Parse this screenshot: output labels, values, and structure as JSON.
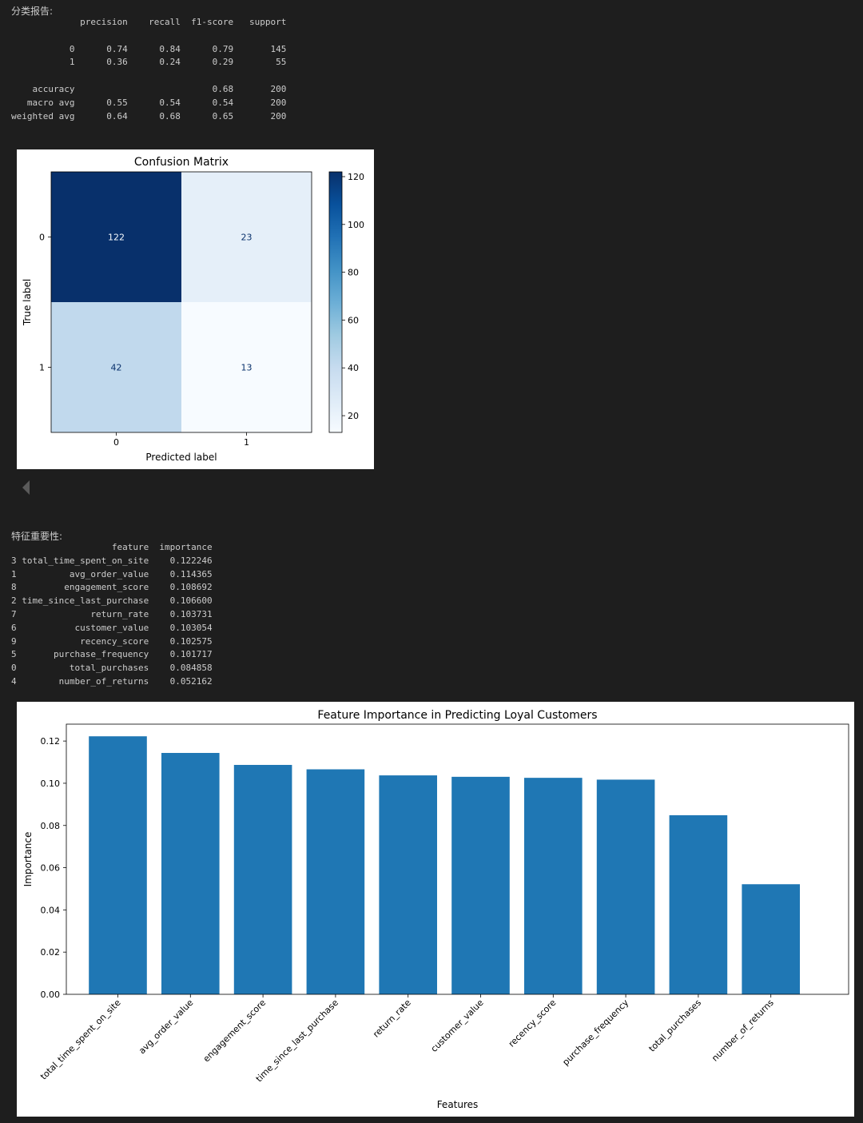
{
  "report": {
    "heading": "分类报告:",
    "header": {
      "precision": "precision",
      "recall": "recall",
      "f1": "f1-score",
      "support": "support"
    },
    "rows": [
      {
        "label": "0",
        "precision": "0.74",
        "recall": "0.84",
        "f1": "0.79",
        "support": "145"
      },
      {
        "label": "1",
        "precision": "0.36",
        "recall": "0.24",
        "f1": "0.29",
        "support": "55"
      },
      {
        "label": "",
        "precision": "",
        "recall": "",
        "f1": "",
        "support": ""
      },
      {
        "label": "accuracy",
        "precision": "",
        "recall": "",
        "f1": "0.68",
        "support": "200"
      },
      {
        "label": "macro avg",
        "precision": "0.55",
        "recall": "0.54",
        "f1": "0.54",
        "support": "200"
      },
      {
        "label": "weighted avg",
        "precision": "0.64",
        "recall": "0.68",
        "f1": "0.65",
        "support": "200"
      }
    ]
  },
  "confusion": {
    "title": "Confusion Matrix",
    "xlabel": "Predicted label",
    "ylabel": "True label",
    "labels": [
      "0",
      "1"
    ],
    "matrix": [
      [
        122,
        23
      ],
      [
        42,
        13
      ]
    ],
    "colorbar_ticks": [
      "20",
      "40",
      "60",
      "80",
      "100",
      "120"
    ],
    "colorbar_tick_values": [
      20,
      40,
      60,
      80,
      100,
      120
    ],
    "colormap": [
      "#f7fbff",
      "#deebf7",
      "#c6dbef",
      "#9ecae1",
      "#6baed6",
      "#4292c6",
      "#2171b5",
      "#08519c",
      "#08306b"
    ]
  },
  "importance_table": {
    "heading": "特征重要性:",
    "header": {
      "feature": "feature",
      "importance": "importance"
    },
    "rows": [
      {
        "idx": "3",
        "feature": "total_time_spent_on_site",
        "importance": "0.122246"
      },
      {
        "idx": "1",
        "feature": "avg_order_value",
        "importance": "0.114365"
      },
      {
        "idx": "8",
        "feature": "engagement_score",
        "importance": "0.108692"
      },
      {
        "idx": "2",
        "feature": "time_since_last_purchase",
        "importance": "0.106600"
      },
      {
        "idx": "7",
        "feature": "return_rate",
        "importance": "0.103731"
      },
      {
        "idx": "6",
        "feature": "customer_value",
        "importance": "0.103054"
      },
      {
        "idx": "9",
        "feature": "recency_score",
        "importance": "0.102575"
      },
      {
        "idx": "5",
        "feature": "purchase_frequency",
        "importance": "0.101717"
      },
      {
        "idx": "0",
        "feature": "total_purchases",
        "importance": "0.084858"
      },
      {
        "idx": "4",
        "feature": "number_of_returns",
        "importance": "0.052162"
      }
    ]
  },
  "chart_data": {
    "type": "bar",
    "title": "Feature Importance in Predicting Loyal Customers",
    "xlabel": "Features",
    "ylabel": "Importance",
    "categories": [
      "total_time_spent_on_site",
      "avg_order_value",
      "engagement_score",
      "time_since_last_purchase",
      "return_rate",
      "customer_value",
      "recency_score",
      "purchase_frequency",
      "total_purchases",
      "number_of_returns"
    ],
    "values": [
      0.122246,
      0.114365,
      0.108692,
      0.1066,
      0.103731,
      0.103054,
      0.102575,
      0.101717,
      0.084858,
      0.052162
    ],
    "ylim": [
      0,
      0.128
    ],
    "yticks": [
      0.0,
      0.02,
      0.04,
      0.06,
      0.08,
      0.1,
      0.12
    ],
    "ytick_labels": [
      "0.00",
      "0.02",
      "0.04",
      "0.06",
      "0.08",
      "0.10",
      "0.12"
    ],
    "bar_color": "#1f77b4",
    "grid": false
  }
}
